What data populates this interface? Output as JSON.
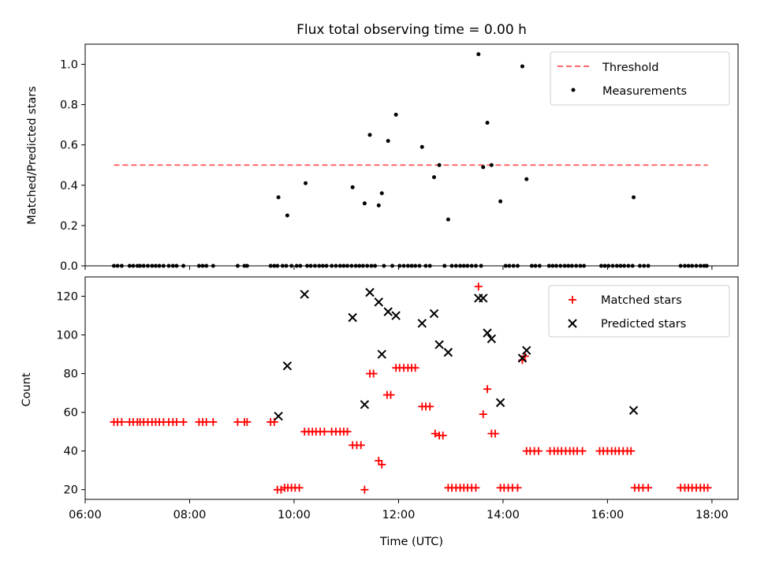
{
  "chart_data": [
    {
      "type": "scatter",
      "title": "Flux total observing time = 0.00 h",
      "xlabel": "",
      "ylabel": "Matched/Predicted stars",
      "xlim": [
        6.0,
        18.5
      ],
      "ylim": [
        0.0,
        1.1
      ],
      "x_ticks": [
        6,
        8,
        10,
        12,
        14,
        16,
        18
      ],
      "x_ticks_labeled": false,
      "y_ticks": [
        0.0,
        0.2,
        0.4,
        0.6,
        0.8,
        1.0
      ],
      "y_tick_labels": [
        "0.0",
        "0.2",
        "0.4",
        "0.6",
        "0.8",
        "1.0"
      ],
      "grid": false,
      "legend_position": "top-right",
      "threshold": {
        "name": "Threshold",
        "y": 0.5,
        "x_range": [
          6.55,
          17.92
        ],
        "color": "#ff6666",
        "style": "dashed"
      },
      "series": [
        {
          "name": "Measurements",
          "color": "#000000",
          "marker": "dot",
          "x": [
            9.7,
            9.87,
            10.22,
            11.12,
            11.35,
            11.45,
            11.62,
            11.68,
            11.8,
            11.95,
            12.45,
            12.68,
            12.78,
            12.95,
            13.53,
            13.62,
            13.7,
            13.78,
            13.95,
            14.37,
            14.45,
            16.5,
            6.55,
            6.62,
            6.7,
            6.85,
            6.92,
            7.0,
            7.05,
            7.12,
            7.2,
            7.28,
            7.35,
            7.42,
            7.5,
            7.6,
            7.68,
            7.75,
            7.88,
            8.18,
            8.25,
            8.32,
            8.45,
            8.92,
            9.05,
            9.1,
            9.55,
            9.62,
            9.68,
            9.78,
            9.85,
            9.95,
            10.05,
            10.12,
            10.25,
            10.32,
            10.4,
            10.48,
            10.55,
            10.62,
            10.72,
            10.8,
            10.88,
            10.95,
            11.02,
            11.1,
            11.18,
            11.25,
            11.32,
            11.4,
            11.48,
            11.55,
            11.72,
            11.88,
            12.02,
            12.1,
            12.18,
            12.25,
            12.32,
            12.4,
            12.52,
            12.6,
            12.88,
            13.02,
            13.1,
            13.18,
            13.25,
            13.32,
            13.4,
            13.48,
            13.58,
            14.05,
            14.12,
            14.2,
            14.28,
            14.55,
            14.62,
            14.7,
            14.88,
            14.95,
            15.02,
            15.1,
            15.18,
            15.25,
            15.32,
            15.4,
            15.48,
            15.55,
            15.88,
            15.95,
            16.02,
            16.1,
            16.18,
            16.25,
            16.32,
            16.4,
            16.48,
            16.62,
            16.7,
            16.78,
            17.4,
            17.48,
            17.55,
            17.62,
            17.7,
            17.78,
            17.85,
            17.9
          ],
          "y": [
            0.34,
            0.25,
            0.41,
            0.39,
            0.31,
            0.65,
            0.3,
            0.36,
            0.62,
            0.75,
            0.59,
            0.44,
            0.5,
            0.23,
            1.05,
            0.49,
            0.71,
            0.5,
            0.32,
            0.99,
            0.43,
            0.34,
            0,
            0,
            0,
            0,
            0,
            0,
            0,
            0,
            0,
            0,
            0,
            0,
            0,
            0,
            0,
            0,
            0,
            0,
            0,
            0,
            0,
            0,
            0,
            0,
            0,
            0,
            0,
            0,
            0,
            0,
            0,
            0,
            0,
            0,
            0,
            0,
            0,
            0,
            0,
            0,
            0,
            0,
            0,
            0,
            0,
            0,
            0,
            0,
            0,
            0,
            0,
            0,
            0,
            0,
            0,
            0,
            0,
            0,
            0,
            0,
            0,
            0,
            0,
            0,
            0,
            0,
            0,
            0,
            0,
            0,
            0,
            0,
            0,
            0,
            0,
            0,
            0,
            0,
            0,
            0,
            0,
            0,
            0,
            0,
            0,
            0,
            0,
            0,
            0,
            0,
            0,
            0,
            0,
            0,
            0,
            0,
            0,
            0,
            0,
            0,
            0,
            0,
            0,
            0,
            0,
            0
          ]
        }
      ]
    },
    {
      "type": "scatter",
      "title": "",
      "xlabel": "Time (UTC)",
      "ylabel": "Count",
      "xlim": [
        6.0,
        18.5
      ],
      "ylim": [
        15,
        130
      ],
      "x_ticks": [
        6,
        8,
        10,
        12,
        14,
        16,
        18
      ],
      "x_tick_labels": [
        "06:00",
        "08:00",
        "10:00",
        "12:00",
        "14:00",
        "16:00",
        "18:00"
      ],
      "y_ticks": [
        20,
        40,
        60,
        80,
        100,
        120
      ],
      "y_tick_labels": [
        "20",
        "40",
        "60",
        "80",
        "100",
        "120"
      ],
      "grid": false,
      "legend_position": "top-right",
      "series": [
        {
          "name": "Matched stars",
          "color": "#ff0000",
          "marker": "plus",
          "x": [
            6.55,
            6.62,
            6.7,
            6.85,
            6.92,
            7.0,
            7.05,
            7.12,
            7.2,
            7.28,
            7.35,
            7.42,
            7.5,
            7.6,
            7.68,
            7.75,
            7.88,
            8.18,
            8.25,
            8.32,
            8.45,
            8.92,
            9.05,
            9.1,
            9.55,
            9.62,
            9.68,
            9.75,
            9.82,
            9.88,
            9.95,
            10.02,
            10.1,
            10.2,
            10.28,
            10.35,
            10.42,
            10.5,
            10.58,
            10.72,
            10.8,
            10.88,
            10.95,
            11.02,
            11.12,
            11.2,
            11.28,
            11.35,
            11.45,
            11.52,
            11.62,
            11.68,
            11.78,
            11.85,
            11.95,
            12.02,
            12.1,
            12.18,
            12.25,
            12.32,
            12.45,
            12.52,
            12.6,
            12.7,
            12.78,
            12.85,
            12.95,
            13.02,
            13.1,
            13.18,
            13.25,
            13.32,
            13.4,
            13.48,
            13.53,
            13.62,
            13.7,
            13.78,
            13.85,
            13.95,
            14.02,
            14.1,
            14.18,
            14.28,
            14.37,
            14.42,
            14.45,
            14.52,
            14.6,
            14.68,
            14.9,
            14.98,
            15.05,
            15.12,
            15.2,
            15.28,
            15.35,
            15.42,
            15.52,
            15.85,
            15.92,
            16.0,
            16.08,
            16.15,
            16.22,
            16.3,
            16.38,
            16.45,
            16.52,
            16.6,
            16.68,
            16.78,
            17.4,
            17.48,
            17.55,
            17.62,
            17.7,
            17.78,
            17.85,
            17.92
          ],
          "y": [
            55,
            55,
            55,
            55,
            55,
            55,
            55,
            55,
            55,
            55,
            55,
            55,
            55,
            55,
            55,
            55,
            55,
            55,
            55,
            55,
            55,
            55,
            55,
            55,
            55,
            55,
            20,
            20,
            21,
            21,
            21,
            21,
            21,
            50,
            50,
            50,
            50,
            50,
            50,
            50,
            50,
            50,
            50,
            50,
            43,
            43,
            43,
            20,
            80,
            80,
            35,
            33,
            69,
            69,
            83,
            83,
            83,
            83,
            83,
            83,
            63,
            63,
            63,
            49,
            48,
            48,
            21,
            21,
            21,
            21,
            21,
            21,
            21,
            21,
            125,
            59,
            72,
            49,
            49,
            21,
            21,
            21,
            21,
            21,
            87,
            89,
            40,
            40,
            40,
            40,
            40,
            40,
            40,
            40,
            40,
            40,
            40,
            40,
            40,
            40,
            40,
            40,
            40,
            40,
            40,
            40,
            40,
            40,
            21,
            21,
            21,
            21,
            21,
            21,
            21,
            21,
            21,
            21,
            21,
            21
          ]
        },
        {
          "name": "Predicted stars",
          "color": "#000000",
          "marker": "x",
          "x": [
            9.7,
            9.87,
            10.2,
            11.12,
            11.35,
            11.45,
            11.62,
            11.68,
            11.8,
            11.95,
            12.45,
            12.68,
            12.78,
            12.95,
            13.53,
            13.62,
            13.7,
            13.78,
            13.95,
            14.37,
            14.45,
            16.5
          ],
          "y": [
            58,
            84,
            121,
            109,
            64,
            122,
            117,
            90,
            112,
            110,
            106,
            111,
            95,
            91,
            119,
            119,
            101,
            98,
            65,
            88,
            92,
            61
          ]
        }
      ]
    }
  ]
}
